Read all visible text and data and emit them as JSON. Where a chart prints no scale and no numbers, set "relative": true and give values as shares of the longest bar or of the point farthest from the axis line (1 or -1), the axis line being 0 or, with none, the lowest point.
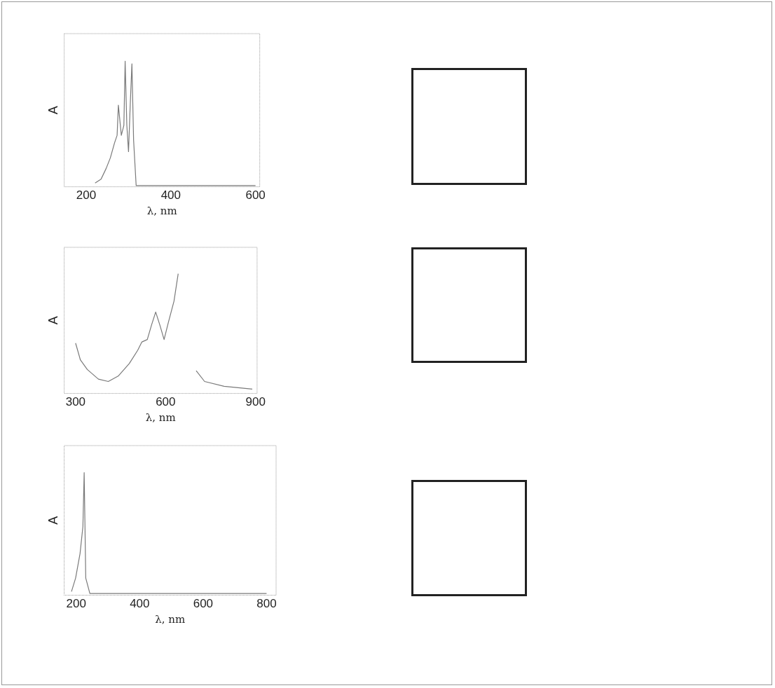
{
  "chart_data": [
    {
      "type": "line",
      "xlabel": "λ, nm",
      "ylabel": "A",
      "relative": true,
      "xlim": [
        148,
        610
      ],
      "xticks": [
        200,
        400,
        600
      ],
      "color": "#7a7a7a",
      "marker": "none",
      "grid": false,
      "legend": false,
      "x": [
        221,
        235,
        247,
        257,
        267,
        273,
        276,
        283,
        289,
        292,
        296,
        300,
        304,
        308,
        312,
        318,
        400,
        500,
        600
      ],
      "values": [
        0.03,
        0.06,
        0.145,
        0.23,
        0.35,
        0.41,
        0.65,
        0.41,
        0.49,
        1,
        0.49,
        0.28,
        0.65,
        0.98,
        0.37,
        0.01,
        0.01,
        0.01,
        0.01
      ]
    },
    {
      "type": "line",
      "xlabel": "λ, nm",
      "ylabel": "A",
      "relative": true,
      "xlim": [
        262,
        905
      ],
      "xticks": [
        300,
        600,
        900
      ],
      "color": "#7a7a7a",
      "marker": "none",
      "grid": false,
      "legend": false,
      "x": [
        300,
        316,
        339,
        376,
        409,
        442,
        479,
        507,
        521,
        539,
        553,
        567,
        581,
        595,
        609,
        628,
        642,
        670,
        702,
        730,
        795,
        889
      ],
      "values": [
        0.42,
        0.28,
        0.2,
        0.12,
        0.1,
        0.145,
        0.25,
        0.36,
        0.43,
        0.45,
        0.57,
        0.68,
        0.57,
        0.45,
        0.59,
        0.77,
        1,
        null,
        0.19,
        0.1,
        0.06,
        0.036
      ]
    },
    {
      "type": "line",
      "xlabel": "λ, nm",
      "ylabel": "A",
      "relative": true,
      "xlim": [
        162,
        830
      ],
      "xticks": [
        200,
        400,
        600,
        800
      ],
      "color": "#7a7a7a",
      "marker": "none",
      "grid": false,
      "legend": false,
      "x": [
        185,
        198,
        212,
        221,
        225,
        230,
        243,
        400,
        600,
        800
      ],
      "values": [
        0.03,
        0.14,
        0.34,
        0.56,
        1,
        0.14,
        0.014,
        0.014,
        0.014,
        0.014
      ]
    }
  ]
}
